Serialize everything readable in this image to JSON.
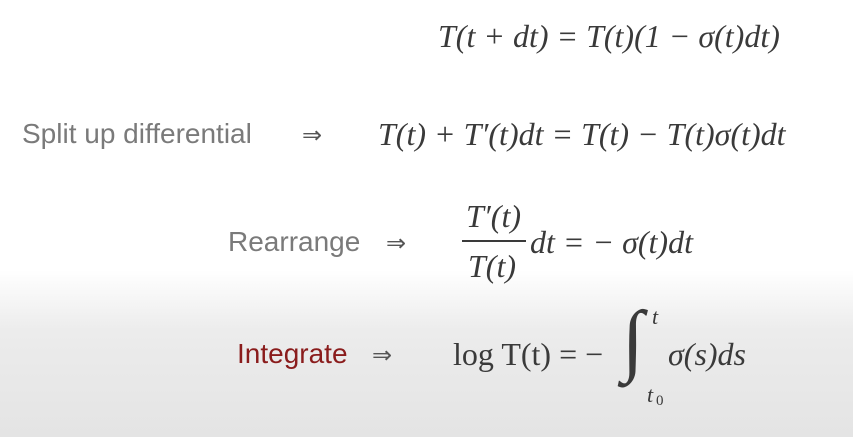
{
  "lines": [
    {
      "equation": "T(t + dt) = T(t)(1 − σ(t)dt)"
    },
    {
      "label": "Split up differential",
      "arrow": "⇒",
      "equation": "T(t) + T′(t)dt = T(t) − T(t)σ(t)dt"
    },
    {
      "label": "Rearrange",
      "arrow": "⇒",
      "numerator": "T′(t)",
      "denominator": "T(t)",
      "equation": "dt = − σ(t)dt"
    },
    {
      "label": "Integrate",
      "arrow": "⇒",
      "equation": "log T(t) = −",
      "integral": "∫",
      "upper": "t",
      "lower": "t",
      "lower_sub": "0",
      "integrand": "σ(s)ds"
    }
  ]
}
